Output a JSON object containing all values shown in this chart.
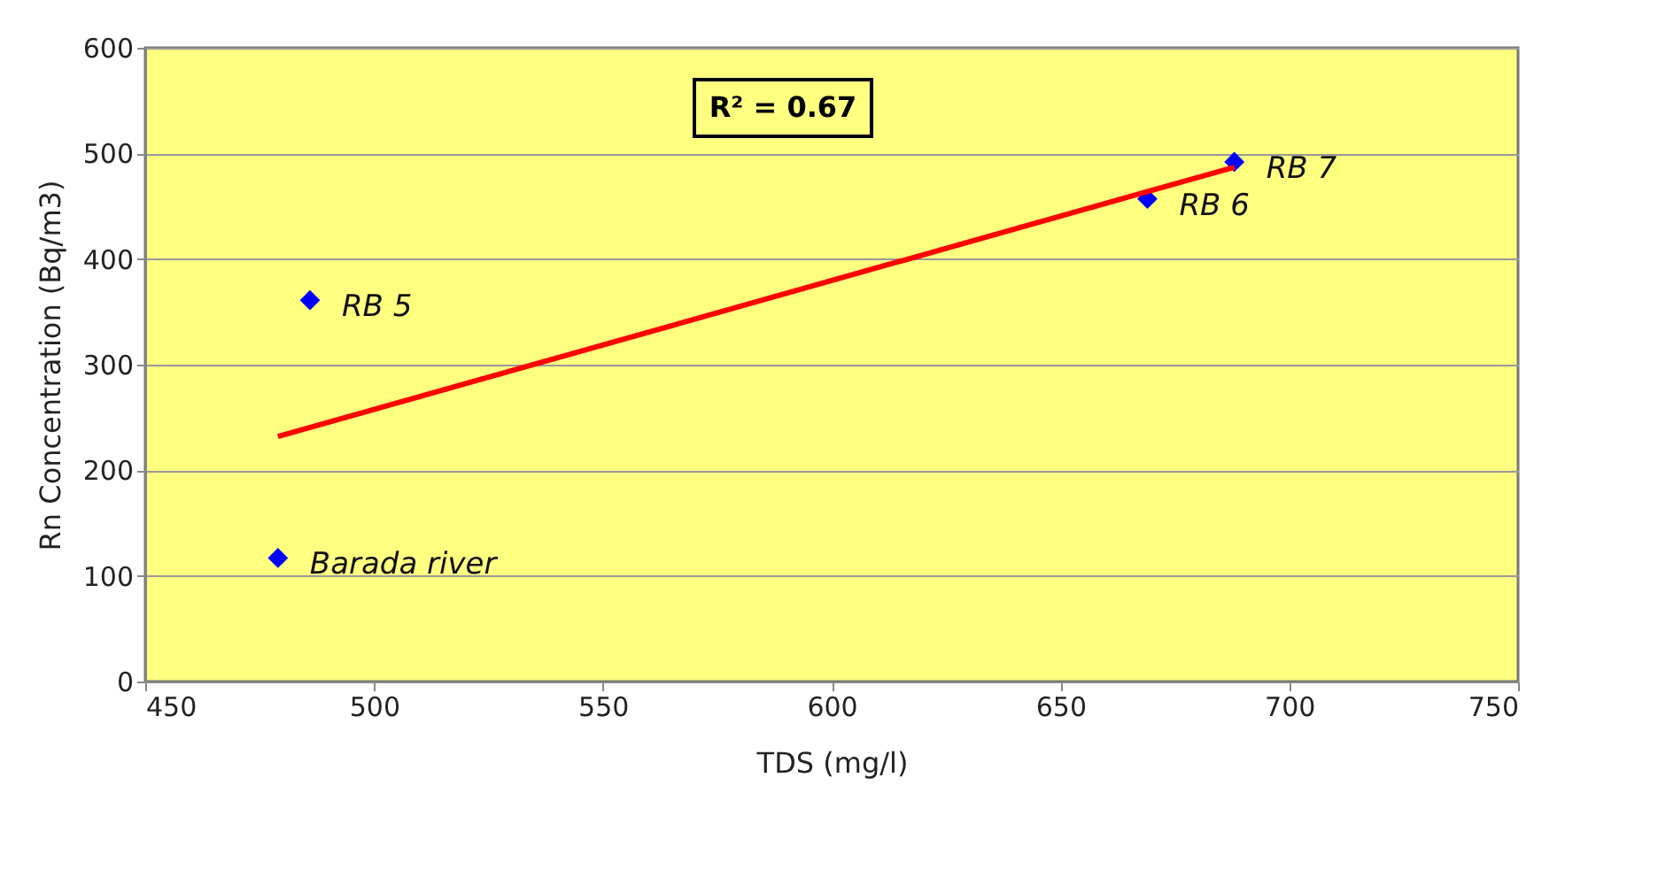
{
  "chart_data": {
    "type": "scatter",
    "xlabel": "TDS (mg/l)",
    "ylabel": "Rn Concentration (Bq/m3)",
    "x": [
      479,
      486,
      669,
      688
    ],
    "series": [
      {
        "color": "#0000ff",
        "values": [
          117,
          361,
          457,
          492
        ],
        "marker": "diamond"
      },
      {
        "type": "line",
        "color": "#ff0000",
        "x": [
          479,
          688
        ],
        "values": [
          232,
          487
        ]
      }
    ],
    "annotations": [
      "R² = 0.67",
      {
        "text": "Barada river",
        "x": 479,
        "y": 117
      },
      {
        "text": "RB 5",
        "x": 486,
        "y": 361
      },
      {
        "text": "RB 6",
        "x": 669,
        "y": 457
      },
      {
        "text": "RB 7",
        "x": 688,
        "y": 492
      }
    ],
    "xlim": [
      450,
      750
    ],
    "xticks": [
      450,
      500,
      550,
      600,
      650,
      700,
      750
    ],
    "ylim": [
      0,
      600
    ],
    "yticks": [
      0,
      100,
      200,
      300,
      400,
      500,
      600
    ],
    "grid": "y"
  }
}
